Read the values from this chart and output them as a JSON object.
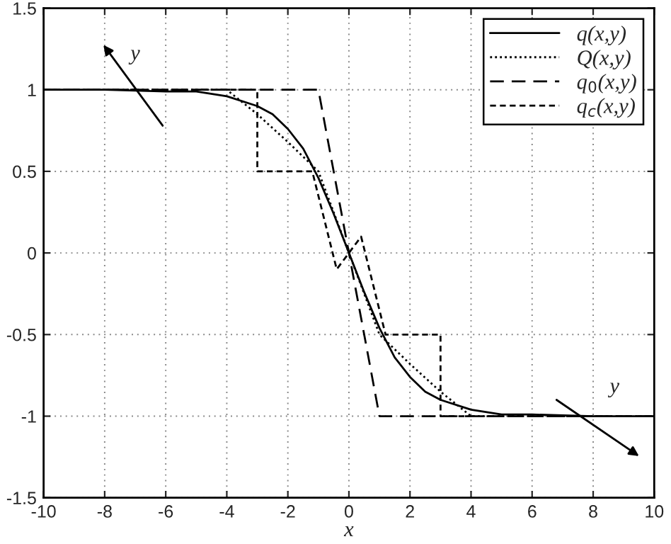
{
  "chart_data": {
    "type": "line",
    "xlabel": "x",
    "xlim": [
      -10,
      10
    ],
    "ylim": [
      -1.5,
      1.5
    ],
    "xticks": [
      -10,
      -8,
      -6,
      -4,
      -2,
      0,
      2,
      4,
      6,
      8,
      10
    ],
    "yticks": [
      -1.5,
      -1,
      -0.5,
      0,
      0.5,
      1,
      1.5
    ],
    "grid": true,
    "legend": "top right",
    "marker": "none",
    "series": [
      {
        "name": "q(x,y)",
        "color": "#000000",
        "line_style": "solid",
        "x": [
          -10,
          -8,
          -6,
          -5,
          -4,
          -3,
          -2.5,
          -2,
          -1.5,
          -1,
          -0.5,
          0,
          0.5,
          1,
          1.5,
          2,
          2.5,
          3,
          4,
          5,
          6,
          8,
          10
        ],
        "values": [
          1,
          1,
          0.99,
          0.99,
          0.96,
          0.9,
          0.85,
          0.76,
          0.64,
          0.46,
          0.24,
          0,
          -0.24,
          -0.46,
          -0.64,
          -0.76,
          -0.85,
          -0.9,
          -0.96,
          -0.99,
          -0.99,
          -1,
          -1
        ]
      },
      {
        "name": "Q(x,y)",
        "color": "#000000",
        "line_style": "dotted",
        "x": [
          -10,
          -4,
          -3,
          -2,
          -1,
          0,
          1,
          2,
          3,
          4,
          10
        ],
        "values": [
          1,
          1,
          0.85,
          0.68,
          0.5,
          0,
          -0.5,
          -0.68,
          -0.85,
          -1,
          -1
        ]
      },
      {
        "name": "q$_{0}$(x,y)",
        "color": "#000000",
        "line_style": "long dashed",
        "x": [
          -10,
          -1,
          1,
          10
        ],
        "values": [
          1,
          1,
          -1,
          -1
        ]
      },
      {
        "name": "q$_{c}$(x,y)",
        "color": "#000000",
        "line_style": "dashed",
        "x": [
          -10,
          -3,
          -3,
          -1.2,
          -0.4,
          0.4,
          1.2,
          3,
          3,
          10
        ],
        "values": [
          1,
          1,
          0.5,
          0.5,
          -0.1,
          0.1,
          -0.5,
          -0.5,
          -1,
          -1
        ]
      }
    ],
    "annotations": [
      "y",
      "y"
    ]
  }
}
